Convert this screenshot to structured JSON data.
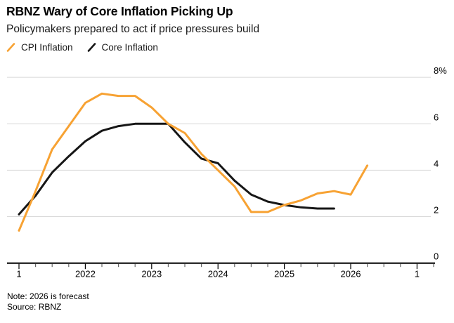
{
  "header": {
    "title": "RBNZ Wary of Core Inflation Picking Up",
    "subtitle": "Policymakers prepared to act if price pressures build"
  },
  "footer": {
    "note": "Note: 2026 is forecast",
    "source": "Source: RBNZ"
  },
  "chart_data": {
    "type": "line",
    "title": "RBNZ Wary of Core Inflation Picking Up",
    "subtitle": "Policymakers prepared to act if price pressures build",
    "grid": true,
    "legend_position": "top-left",
    "ylim": [
      0,
      8
    ],
    "y_unit": "%",
    "x": [
      "2021Q1",
      "2021Q2",
      "2021Q3",
      "2021Q4",
      "2022Q1",
      "2022Q2",
      "2022Q3",
      "2022Q4",
      "2023Q1",
      "2023Q2",
      "2023Q3",
      "2023Q4",
      "2024Q1",
      "2024Q2",
      "2024Q3",
      "2024Q4",
      "2025Q1",
      "2025Q2",
      "2025Q3",
      "2025Q4",
      "2026Q1",
      "2026Q2"
    ],
    "x_ticks": [
      {
        "q": 0,
        "label": "1"
      },
      {
        "q": 4,
        "label": "2022"
      },
      {
        "q": 8,
        "label": "2023"
      },
      {
        "q": 12,
        "label": "2024"
      },
      {
        "q": 16,
        "label": "2025"
      },
      {
        "q": 20,
        "label": "2026"
      },
      {
        "q": 24,
        "label": "1"
      }
    ],
    "y_ticks": [
      {
        "value": 8,
        "label": "8%"
      },
      {
        "value": 6,
        "label": "6"
      },
      {
        "value": 4,
        "label": "4"
      },
      {
        "value": 2,
        "label": "2"
      },
      {
        "value": 0,
        "label": "0"
      }
    ],
    "series": [
      {
        "name": "CPI Inflation",
        "color": "#F7A233",
        "values": [
          1.4,
          3.1,
          4.9,
          5.9,
          6.9,
          7.3,
          7.2,
          7.2,
          6.7,
          6.0,
          5.6,
          4.7,
          4.0,
          3.3,
          2.2,
          2.2,
          2.5,
          2.7,
          3.0,
          3.1,
          2.95,
          4.2
        ]
      },
      {
        "name": "Core Inflation",
        "color": "#161616",
        "values": [
          2.1,
          2.9,
          3.9,
          4.6,
          5.25,
          5.7,
          5.9,
          6.0,
          6.0,
          6.0,
          5.2,
          4.5,
          4.3,
          3.55,
          2.95,
          2.65,
          2.5,
          2.4,
          2.35,
          2.35
        ]
      }
    ]
  }
}
